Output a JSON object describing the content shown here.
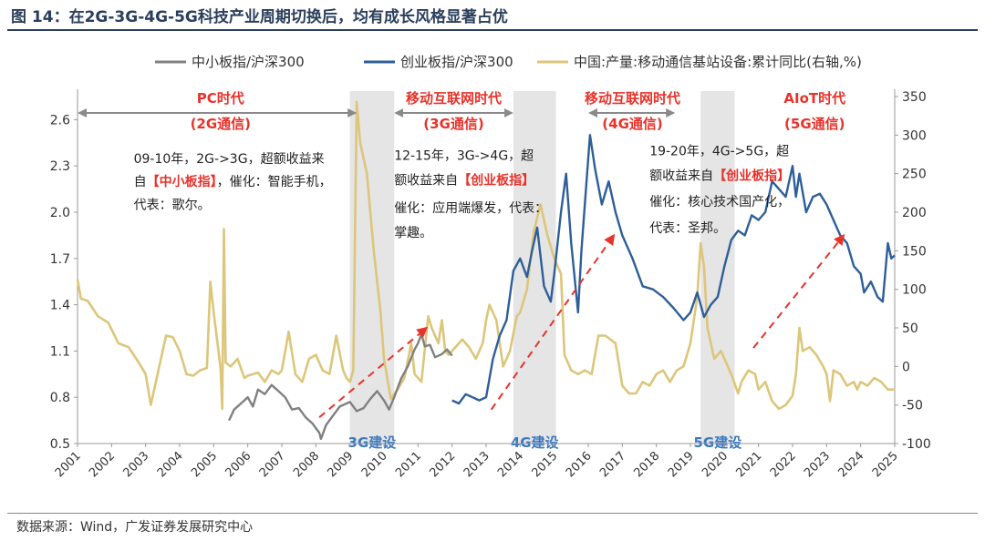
{
  "header": {
    "title": "图 14：在2G-3G-4G-5G科技产业周期切换后，均有成长风格显著占优"
  },
  "footer": {
    "source": "数据来源：Wind，广发证券发展研究中心"
  },
  "colors": {
    "grey": "#808080",
    "blue": "#2e5e99",
    "gold": "#dcc67a",
    "red": "#e8322a",
    "shade": "#dcdcdc",
    "arrow": "#8a8a8a"
  },
  "chart_data": {
    "type": "line",
    "title": "在2G-3G-4G-5G科技产业周期切换后，均有成长风格显著占优",
    "x_range": [
      2001,
      2025
    ],
    "x_ticks": [
      "2001",
      "2002",
      "2003",
      "2004",
      "2005",
      "2006",
      "2007",
      "2008",
      "2009",
      "2010",
      "2011",
      "2012",
      "2013",
      "2014",
      "2015",
      "2016",
      "2017",
      "2018",
      "2019",
      "2020",
      "2021",
      "2022",
      "2023",
      "2024",
      "2025"
    ],
    "y_left": {
      "range": [
        0.5,
        2.75
      ],
      "ticks": [
        "0.5",
        "0.8",
        "1.1",
        "1.4",
        "1.7",
        "2.0",
        "2.3",
        "2.6"
      ]
    },
    "y_right": {
      "range": [
        -100,
        350
      ],
      "ticks": [
        "-100",
        "-50",
        "0",
        "50",
        "100",
        "150",
        "200",
        "250",
        "300",
        "350"
      ]
    },
    "legend": [
      "中小板指/沪深300",
      "创业板指/沪深300",
      "中国:产量:移动通信基站设备:累计同比(右轴,%)"
    ],
    "series": [
      {
        "name": "中小板指/沪深300",
        "axis": "left",
        "points": [
          [
            2005.45,
            0.65
          ],
          [
            2005.6,
            0.72
          ],
          [
            2005.8,
            0.76
          ],
          [
            2006.0,
            0.8
          ],
          [
            2006.15,
            0.74
          ],
          [
            2006.3,
            0.85
          ],
          [
            2006.5,
            0.82
          ],
          [
            2006.7,
            0.88
          ],
          [
            2006.9,
            0.84
          ],
          [
            2007.1,
            0.8
          ],
          [
            2007.3,
            0.72
          ],
          [
            2007.5,
            0.73
          ],
          [
            2007.7,
            0.67
          ],
          [
            2007.9,
            0.63
          ],
          [
            2008.0,
            0.6
          ],
          [
            2008.1,
            0.57
          ],
          [
            2008.15,
            0.53
          ],
          [
            2008.3,
            0.62
          ],
          [
            2008.5,
            0.68
          ],
          [
            2008.7,
            0.74
          ],
          [
            2008.9,
            0.76
          ],
          [
            2009.0,
            0.77
          ],
          [
            2009.2,
            0.71
          ],
          [
            2009.4,
            0.73
          ],
          [
            2009.6,
            0.79
          ],
          [
            2009.8,
            0.84
          ],
          [
            2010.0,
            0.78
          ],
          [
            2010.15,
            0.72
          ],
          [
            2010.3,
            0.8
          ],
          [
            2010.5,
            0.92
          ],
          [
            2010.7,
            1.0
          ],
          [
            2010.9,
            1.11
          ],
          [
            2011.0,
            1.15
          ],
          [
            2011.1,
            1.21
          ],
          [
            2011.2,
            1.13
          ],
          [
            2011.35,
            1.14
          ],
          [
            2011.5,
            1.06
          ],
          [
            2011.7,
            1.08
          ],
          [
            2011.85,
            1.11
          ],
          [
            2012.0,
            1.07
          ]
        ]
      },
      {
        "name": "创业板指/沪深300",
        "axis": "left",
        "points": [
          [
            2012.0,
            0.78
          ],
          [
            2012.2,
            0.76
          ],
          [
            2012.4,
            0.82
          ],
          [
            2012.6,
            0.8
          ],
          [
            2012.8,
            0.78
          ],
          [
            2013.0,
            0.8
          ],
          [
            2013.2,
            1.05
          ],
          [
            2013.4,
            1.2
          ],
          [
            2013.6,
            1.3
          ],
          [
            2013.8,
            1.62
          ],
          [
            2014.0,
            1.7
          ],
          [
            2014.2,
            1.58
          ],
          [
            2014.35,
            1.75
          ],
          [
            2014.5,
            1.9
          ],
          [
            2014.7,
            1.52
          ],
          [
            2014.9,
            1.42
          ],
          [
            2015.0,
            1.6
          ],
          [
            2015.2,
            2.0
          ],
          [
            2015.35,
            2.25
          ],
          [
            2015.5,
            1.8
          ],
          [
            2015.7,
            1.35
          ],
          [
            2015.8,
            1.75
          ],
          [
            2015.95,
            2.2
          ],
          [
            2016.05,
            2.5
          ],
          [
            2016.2,
            2.28
          ],
          [
            2016.4,
            2.05
          ],
          [
            2016.6,
            2.2
          ],
          [
            2016.8,
            2.0
          ],
          [
            2017.0,
            1.85
          ],
          [
            2017.3,
            1.7
          ],
          [
            2017.6,
            1.52
          ],
          [
            2017.9,
            1.5
          ],
          [
            2018.2,
            1.45
          ],
          [
            2018.5,
            1.38
          ],
          [
            2018.8,
            1.3
          ],
          [
            2019.0,
            1.35
          ],
          [
            2019.2,
            1.48
          ],
          [
            2019.4,
            1.32
          ],
          [
            2019.6,
            1.4
          ],
          [
            2019.8,
            1.45
          ],
          [
            2020.0,
            1.65
          ],
          [
            2020.2,
            1.82
          ],
          [
            2020.4,
            1.88
          ],
          [
            2020.6,
            1.85
          ],
          [
            2020.8,
            1.98
          ],
          [
            2021.0,
            1.95
          ],
          [
            2021.2,
            2.0
          ],
          [
            2021.4,
            2.2
          ],
          [
            2021.6,
            2.15
          ],
          [
            2021.8,
            2.1
          ],
          [
            2022.0,
            2.3
          ],
          [
            2022.1,
            2.1
          ],
          [
            2022.2,
            2.25
          ],
          [
            2022.4,
            2.0
          ],
          [
            2022.6,
            2.1
          ],
          [
            2022.8,
            2.12
          ],
          [
            2023.0,
            2.05
          ],
          [
            2023.2,
            1.95
          ],
          [
            2023.4,
            1.85
          ],
          [
            2023.6,
            1.8
          ],
          [
            2023.8,
            1.65
          ],
          [
            2024.0,
            1.6
          ],
          [
            2024.1,
            1.48
          ],
          [
            2024.3,
            1.55
          ],
          [
            2024.5,
            1.45
          ],
          [
            2024.65,
            1.42
          ],
          [
            2024.8,
            1.8
          ],
          [
            2024.9,
            1.7
          ],
          [
            2025.0,
            1.72
          ]
        ]
      },
      {
        "name": "中国:产量:移动通信基站设备:累计同比(右轴,%)",
        "axis": "right",
        "points": [
          [
            2001.0,
            113
          ],
          [
            2001.1,
            88
          ],
          [
            2001.3,
            85
          ],
          [
            2001.6,
            65
          ],
          [
            2001.9,
            57
          ],
          [
            2002.2,
            30
          ],
          [
            2002.5,
            25
          ],
          [
            2002.8,
            5
          ],
          [
            2003.0,
            -10
          ],
          [
            2003.15,
            -50
          ],
          [
            2003.3,
            -20
          ],
          [
            2003.6,
            40
          ],
          [
            2003.8,
            38
          ],
          [
            2004.0,
            20
          ],
          [
            2004.2,
            -10
          ],
          [
            2004.4,
            -12
          ],
          [
            2004.6,
            -5
          ],
          [
            2004.8,
            -2
          ],
          [
            2004.9,
            110
          ],
          [
            2005.0,
            70
          ],
          [
            2005.2,
            -2
          ],
          [
            2005.25,
            -55
          ],
          [
            2005.3,
            178
          ],
          [
            2005.35,
            5
          ],
          [
            2005.5,
            0
          ],
          [
            2005.7,
            10
          ],
          [
            2005.9,
            -15
          ],
          [
            2006.0,
            -12
          ],
          [
            2006.3,
            -8
          ],
          [
            2006.5,
            -20
          ],
          [
            2006.7,
            -5
          ],
          [
            2006.9,
            -10
          ],
          [
            2007.0,
            -5
          ],
          [
            2007.2,
            45
          ],
          [
            2007.4,
            -10
          ],
          [
            2007.6,
            -20
          ],
          [
            2007.8,
            10
          ],
          [
            2008.0,
            15
          ],
          [
            2008.2,
            -5
          ],
          [
            2008.4,
            -10
          ],
          [
            2008.6,
            40
          ],
          [
            2008.8,
            -5
          ],
          [
            2008.9,
            -15
          ],
          [
            2009.0,
            -20
          ],
          [
            2009.1,
            -5
          ],
          [
            2009.2,
            343
          ],
          [
            2009.3,
            290
          ],
          [
            2009.5,
            250
          ],
          [
            2009.7,
            150
          ],
          [
            2009.9,
            70
          ],
          [
            2010.0,
            10
          ],
          [
            2010.2,
            -42
          ],
          [
            2010.4,
            -30
          ],
          [
            2010.6,
            -15
          ],
          [
            2010.8,
            30
          ],
          [
            2010.9,
            -10
          ],
          [
            2011.1,
            -20
          ],
          [
            2011.3,
            65
          ],
          [
            2011.4,
            50
          ],
          [
            2011.6,
            30
          ],
          [
            2011.7,
            60
          ],
          [
            2011.8,
            20
          ],
          [
            2011.9,
            15
          ],
          [
            2012.0,
            20
          ],
          [
            2012.3,
            35
          ],
          [
            2012.5,
            25
          ],
          [
            2012.7,
            10
          ],
          [
            2012.9,
            30
          ],
          [
            2013.0,
            60
          ],
          [
            2013.1,
            80
          ],
          [
            2013.3,
            60
          ],
          [
            2013.5,
            0
          ],
          [
            2013.7,
            20
          ],
          [
            2013.9,
            65
          ],
          [
            2014.0,
            70
          ],
          [
            2014.2,
            100
          ],
          [
            2014.4,
            175
          ],
          [
            2014.6,
            210
          ],
          [
            2014.8,
            170
          ],
          [
            2015.0,
            140
          ],
          [
            2015.2,
            120
          ],
          [
            2015.3,
            15
          ],
          [
            2015.5,
            -5
          ],
          [
            2015.7,
            -10
          ],
          [
            2015.9,
            -5
          ],
          [
            2016.1,
            -10
          ],
          [
            2016.3,
            40
          ],
          [
            2016.5,
            40
          ],
          [
            2016.8,
            30
          ],
          [
            2017.0,
            -25
          ],
          [
            2017.2,
            -35
          ],
          [
            2017.4,
            -35
          ],
          [
            2017.6,
            -20
          ],
          [
            2017.8,
            -25
          ],
          [
            2018.0,
            -10
          ],
          [
            2018.2,
            -5
          ],
          [
            2018.4,
            -20
          ],
          [
            2018.6,
            -5
          ],
          [
            2018.8,
            0
          ],
          [
            2019.0,
            30
          ],
          [
            2019.2,
            90
          ],
          [
            2019.3,
            160
          ],
          [
            2019.4,
            130
          ],
          [
            2019.5,
            50
          ],
          [
            2019.7,
            10
          ],
          [
            2019.9,
            20
          ],
          [
            2020.0,
            10
          ],
          [
            2020.2,
            -10
          ],
          [
            2020.4,
            -35
          ],
          [
            2020.5,
            -20
          ],
          [
            2020.7,
            -5
          ],
          [
            2020.9,
            -10
          ],
          [
            2021.0,
            -30
          ],
          [
            2021.2,
            -20
          ],
          [
            2021.4,
            -45
          ],
          [
            2021.6,
            -55
          ],
          [
            2021.8,
            -50
          ],
          [
            2022.0,
            -38
          ],
          [
            2022.1,
            -10
          ],
          [
            2022.2,
            50
          ],
          [
            2022.3,
            20
          ],
          [
            2022.5,
            25
          ],
          [
            2022.7,
            15
          ],
          [
            2022.9,
            0
          ],
          [
            2023.0,
            -10
          ],
          [
            2023.1,
            -45
          ],
          [
            2023.2,
            -5
          ],
          [
            2023.4,
            -10
          ],
          [
            2023.6,
            -25
          ],
          [
            2023.8,
            -20
          ],
          [
            2023.9,
            -30
          ],
          [
            2024.0,
            -20
          ],
          [
            2024.2,
            -25
          ],
          [
            2024.4,
            -15
          ],
          [
            2024.6,
            -20
          ],
          [
            2024.8,
            -30
          ],
          [
            2025.0,
            -30
          ]
        ]
      }
    ],
    "shaded_periods": [
      {
        "label": "3G建设",
        "from": 2009.0,
        "to": 2010.3
      },
      {
        "label": "4G建设",
        "from": 2013.8,
        "to": 2015.05
      },
      {
        "label": "5G建设",
        "from": 2019.3,
        "to": 2020.3
      }
    ],
    "eras": [
      {
        "title": "PC时代",
        "sub": "(2G通信)",
        "from": 2001.0,
        "to": 2009.2,
        "mid": 2005.2
      },
      {
        "title": "移动互联网时代",
        "sub": "(3G通信)",
        "from": 2010.3,
        "to": 2013.8,
        "mid": 2012.05
      },
      {
        "title": "移动互联网时代",
        "sub": "(4G通信)",
        "from": 2016.0,
        "to": 2018.55,
        "mid": 2017.3
      },
      {
        "title": "AIoT时代",
        "sub": "(5G通信)",
        "from": null,
        "to": null,
        "mid": 2022.65
      }
    ],
    "notes": [
      {
        "lines": [
          "09-10年，2G->3G，超额收益来",
          [
            "自",
            "【中小板指】",
            "，催化：智能手机，"
          ],
          "代表：歌尔。"
        ],
        "x": 2002.65,
        "ys": [
          2.32,
          2.17,
          2.02
        ]
      },
      {
        "lines": [
          "12-15年，3G->4G，超",
          [
            "额收益来自",
            "【创业板指】"
          ],
          "催化：应用端爆发，代表：",
          "掌趣。"
        ],
        "x": 2010.3,
        "ys": [
          2.34,
          2.18,
          2.0,
          1.84
        ]
      },
      {
        "lines": [
          "19-20年，4G->5G，超",
          [
            "额收益来自",
            "【创业板指】"
          ],
          "催化：核心技术国产化，",
          "代表：圣邦。"
        ],
        "x": 2017.8,
        "ys": [
          2.37,
          2.21,
          2.04,
          1.87
        ]
      }
    ],
    "trend_arrows": [
      {
        "from": [
          2008.1,
          0.67
        ],
        "to": [
          2011.25,
          1.25
        ]
      },
      {
        "from": [
          2013.15,
          0.72
        ],
        "to": [
          2016.75,
          1.85
        ]
      },
      {
        "from": [
          2020.85,
          1.12
        ],
        "to": [
          2023.5,
          1.85
        ]
      }
    ]
  }
}
